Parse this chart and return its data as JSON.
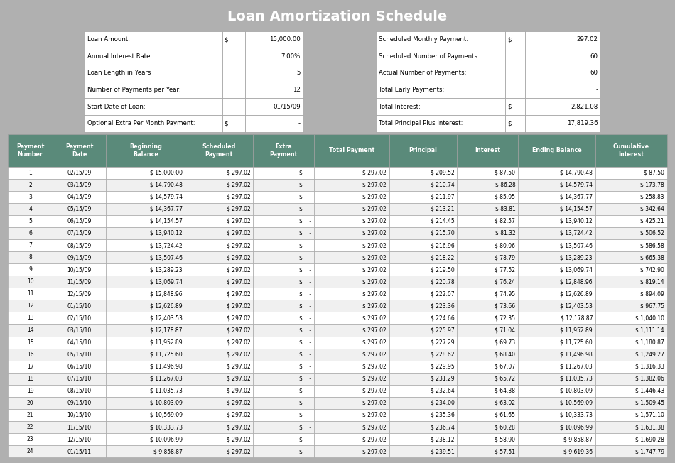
{
  "title": "Loan Amortization Schedule",
  "title_bg": "#3d6b5e",
  "title_color": "#ffffff",
  "info_bg": "#e8edda",
  "header_bg": "#5a8a7a",
  "header_color": "#ffffff",
  "row_bg_odd": "#ffffff",
  "row_bg_even": "#f0f0f0",
  "border_color": "#a0a0a0",
  "left_labels": [
    "Loan Amount:",
    "Annual Interest Rate:",
    "Loan Length in Years",
    "Number of Payments per Year:",
    "Start Date of Loan:",
    "Optional Extra Per Month Payment:"
  ],
  "left_col1": [
    "$",
    "",
    "",
    "",
    "",
    "$"
  ],
  "left_col2": [
    "15,000.00",
    "7.00%",
    "5",
    "12",
    "01/15/09",
    "-"
  ],
  "right_labels": [
    "Scheduled Monthly Payment:",
    "Scheduled Number of Payments:",
    "Actual Number of Payments:",
    "Total Early Payments:",
    "Total Interest:",
    "Total Principal Plus Interest:"
  ],
  "right_col1": [
    "$",
    "",
    "",
    "",
    "$",
    "$"
  ],
  "right_col2": [
    "297.02",
    "60",
    "60",
    "-",
    "2,821.08",
    "17,819.36"
  ],
  "col_headers": [
    "Payment\nNumber",
    "Payment\nDate",
    "Beginning\nBalance",
    "Scheduled\nPayment",
    "Extra\nPayment",
    "Total Payment",
    "Principal",
    "Interest",
    "Ending Balance",
    "Cumulative\nInterest"
  ],
  "rows": [
    [
      1,
      "02/15/09",
      "$ 15,000.00",
      "$ 297.02",
      "$    -",
      "$ 297.02",
      "$ 209.52",
      "$ 87.50",
      "$ 14,790.48",
      "$ 87.50"
    ],
    [
      2,
      "03/15/09",
      "$ 14,790.48",
      "$ 297.02",
      "$    -",
      "$ 297.02",
      "$ 210.74",
      "$ 86.28",
      "$ 14,579.74",
      "$ 173.78"
    ],
    [
      3,
      "04/15/09",
      "$ 14,579.74",
      "$ 297.02",
      "$    -",
      "$ 297.02",
      "$ 211.97",
      "$ 85.05",
      "$ 14,367.77",
      "$ 258.83"
    ],
    [
      4,
      "05/15/09",
      "$ 14,367.77",
      "$ 297.02",
      "$    -",
      "$ 297.02",
      "$ 213.21",
      "$ 83.81",
      "$ 14,154.57",
      "$ 342.64"
    ],
    [
      5,
      "06/15/09",
      "$ 14,154.57",
      "$ 297.02",
      "$    -",
      "$ 297.02",
      "$ 214.45",
      "$ 82.57",
      "$ 13,940.12",
      "$ 425.21"
    ],
    [
      6,
      "07/15/09",
      "$ 13,940.12",
      "$ 297.02",
      "$    -",
      "$ 297.02",
      "$ 215.70",
      "$ 81.32",
      "$ 13,724.42",
      "$ 506.52"
    ],
    [
      7,
      "08/15/09",
      "$ 13,724.42",
      "$ 297.02",
      "$    -",
      "$ 297.02",
      "$ 216.96",
      "$ 80.06",
      "$ 13,507.46",
      "$ 586.58"
    ],
    [
      8,
      "09/15/09",
      "$ 13,507.46",
      "$ 297.02",
      "$    -",
      "$ 297.02",
      "$ 218.22",
      "$ 78.79",
      "$ 13,289.23",
      "$ 665.38"
    ],
    [
      9,
      "10/15/09",
      "$ 13,289.23",
      "$ 297.02",
      "$    -",
      "$ 297.02",
      "$ 219.50",
      "$ 77.52",
      "$ 13,069.74",
      "$ 742.90"
    ],
    [
      10,
      "11/15/09",
      "$ 13,069.74",
      "$ 297.02",
      "$    -",
      "$ 297.02",
      "$ 220.78",
      "$ 76.24",
      "$ 12,848.96",
      "$ 819.14"
    ],
    [
      11,
      "12/15/09",
      "$ 12,848.96",
      "$ 297.02",
      "$    -",
      "$ 297.02",
      "$ 222.07",
      "$ 74.95",
      "$ 12,626.89",
      "$ 894.09"
    ],
    [
      12,
      "01/15/10",
      "$ 12,626.89",
      "$ 297.02",
      "$    -",
      "$ 297.02",
      "$ 223.36",
      "$ 73.66",
      "$ 12,403.53",
      "$ 967.75"
    ],
    [
      13,
      "02/15/10",
      "$ 12,403.53",
      "$ 297.02",
      "$    -",
      "$ 297.02",
      "$ 224.66",
      "$ 72.35",
      "$ 12,178.87",
      "$ 1,040.10"
    ],
    [
      14,
      "03/15/10",
      "$ 12,178.87",
      "$ 297.02",
      "$    -",
      "$ 297.02",
      "$ 225.97",
      "$ 71.04",
      "$ 11,952.89",
      "$ 1,111.14"
    ],
    [
      15,
      "04/15/10",
      "$ 11,952.89",
      "$ 297.02",
      "$    -",
      "$ 297.02",
      "$ 227.29",
      "$ 69.73",
      "$ 11,725.60",
      "$ 1,180.87"
    ],
    [
      16,
      "05/15/10",
      "$ 11,725.60",
      "$ 297.02",
      "$    -",
      "$ 297.02",
      "$ 228.62",
      "$ 68.40",
      "$ 11,496.98",
      "$ 1,249.27"
    ],
    [
      17,
      "06/15/10",
      "$ 11,496.98",
      "$ 297.02",
      "$    -",
      "$ 297.02",
      "$ 229.95",
      "$ 67.07",
      "$ 11,267.03",
      "$ 1,316.33"
    ],
    [
      18,
      "07/15/10",
      "$ 11,267.03",
      "$ 297.02",
      "$    -",
      "$ 297.02",
      "$ 231.29",
      "$ 65.72",
      "$ 11,035.73",
      "$ 1,382.06"
    ],
    [
      19,
      "08/15/10",
      "$ 11,035.73",
      "$ 297.02",
      "$    -",
      "$ 297.02",
      "$ 232.64",
      "$ 64.38",
      "$ 10,803.09",
      "$ 1,446.43"
    ],
    [
      20,
      "09/15/10",
      "$ 10,803.09",
      "$ 297.02",
      "$    -",
      "$ 297.02",
      "$ 234.00",
      "$ 63.02",
      "$ 10,569.09",
      "$ 1,509.45"
    ],
    [
      21,
      "10/15/10",
      "$ 10,569.09",
      "$ 297.02",
      "$    -",
      "$ 297.02",
      "$ 235.36",
      "$ 61.65",
      "$ 10,333.73",
      "$ 1,571.10"
    ],
    [
      22,
      "11/15/10",
      "$ 10,333.73",
      "$ 297.02",
      "$    -",
      "$ 297.02",
      "$ 236.74",
      "$ 60.28",
      "$ 10,096.99",
      "$ 1,631.38"
    ],
    [
      23,
      "12/15/10",
      "$ 10,096.99",
      "$ 297.02",
      "$    -",
      "$ 297.02",
      "$ 238.12",
      "$ 58.90",
      "$ 9,858.87",
      "$ 1,690.28"
    ],
    [
      24,
      "01/15/11",
      "$ 9,858.87",
      "$ 297.02",
      "$    -",
      "$ 297.02",
      "$ 239.51",
      "$ 57.51",
      "$ 9,619.36",
      "$ 1,747.79"
    ]
  ]
}
